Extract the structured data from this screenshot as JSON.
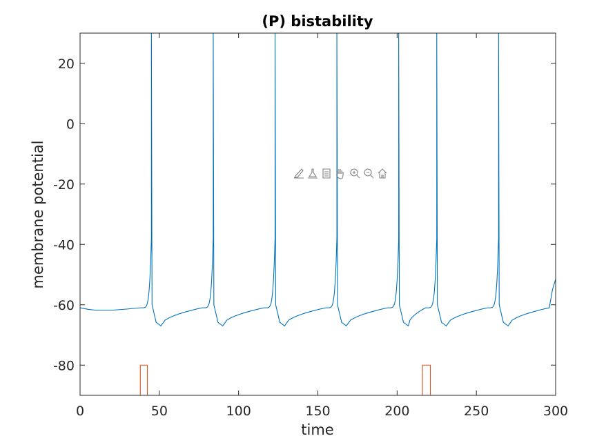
{
  "toolbar": {
    "items": [
      "brush-icon",
      "datatip-icon",
      "datatip-panel-icon",
      "pan-hand-icon",
      "zoom-in-icon",
      "zoom-out-icon",
      "home-icon"
    ]
  },
  "chart_data": {
    "type": "line",
    "title": "(P) bistability",
    "xlabel": "time",
    "ylabel": "membrane potential",
    "xlim": [
      0,
      300
    ],
    "ylim": [
      -90,
      30
    ],
    "xticks": [
      0,
      50,
      100,
      150,
      200,
      250,
      300
    ],
    "xtick_labels": [
      "0",
      "50",
      "100",
      "150",
      "200",
      "250",
      "300"
    ],
    "yticks": [
      -80,
      -60,
      -40,
      -20,
      0,
      20
    ],
    "ytick_labels": [
      "-80",
      "-60",
      "-40",
      "-20",
      "0",
      "20"
    ],
    "grid": false,
    "colors": {
      "membrane": "#0072bd",
      "stimulus": "#d95319",
      "axes": "#262626"
    },
    "series": [
      {
        "id": "membrane",
        "spike_times": [
          45,
          84,
          123,
          162,
          201,
          225,
          264
        ],
        "spike_peak": 30,
        "pre_spike_start": -61,
        "baseline_points": [
          [
            0,
            -61
          ],
          [
            5,
            -61.5
          ],
          [
            10,
            -61.8
          ],
          [
            20,
            -61.8
          ],
          [
            30,
            -61.4
          ],
          [
            38,
            -61
          ]
        ],
        "after_spike_trough": -67,
        "trough_delay": 6,
        "end_value": -51.5
      },
      {
        "id": "stimulus",
        "baseline": -90,
        "pulse_level": -80,
        "pulses": [
          [
            38,
            42.5
          ],
          [
            216,
            221
          ]
        ]
      }
    ]
  }
}
